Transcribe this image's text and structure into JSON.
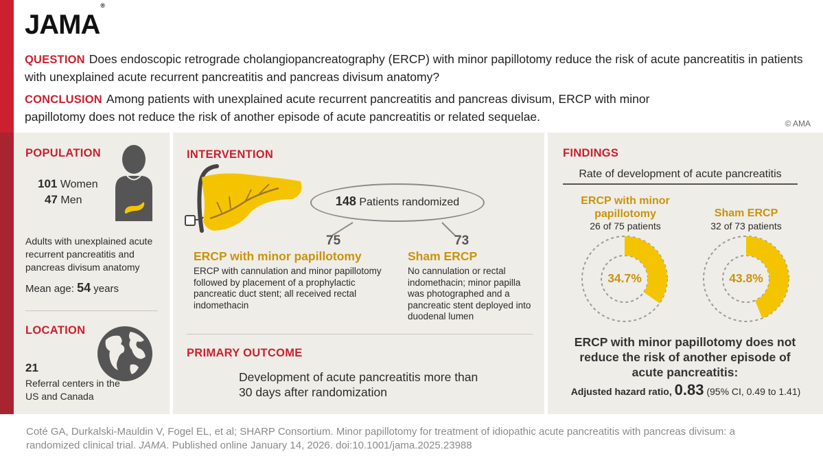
{
  "header": {
    "logo": "JAMA",
    "logo_mark": "®",
    "question_label": "QUESTION",
    "question_text": "Does endoscopic retrograde cholangiopancreatography (ERCP) with minor papillotomy reduce the risk of acute pancreatitis in patients with unexplained acute recurrent pancreatitis and pancreas divisum anatomy?",
    "conclusion_label": "CONCLUSION",
    "conclusion_text": "Among patients with unexplained acute recurrent pancreatitis and pancreas divisum, ERCP with minor papillotomy does not reduce the risk of another episode of acute pancreatitis or related sequelae.",
    "copyright": "© AMA"
  },
  "population": {
    "title": "POPULATION",
    "women_count": "101",
    "women_label": "Women",
    "men_count": "47",
    "men_label": "Men",
    "description": "Adults with unexplained acute recurrent pancreatitis and pancreas divisum anatomy",
    "mean_age_label": "Mean age:",
    "mean_age_value": "54",
    "mean_age_unit": "years"
  },
  "location": {
    "title": "LOCATION",
    "count": "21",
    "description": "Referral centers in the US and Canada"
  },
  "intervention": {
    "title": "INTERVENTION",
    "randomized_count": "148",
    "randomized_label": "Patients randomized",
    "arm1": {
      "n": "75",
      "name": "ERCP with minor papillotomy",
      "description": "ERCP with cannulation and minor papillotomy followed by placement of a prophylactic pancreatic duct stent; all received rectal indomethacin"
    },
    "arm2": {
      "n": "73",
      "name": "Sham ERCP",
      "description": "No cannulation or rectal indomethacin; minor papilla was photographed and a pancreatic stent deployed into duodenal lumen"
    }
  },
  "primary_outcome": {
    "title": "PRIMARY OUTCOME",
    "text": "Development of acute pancreatitis more than 30 days after randomization"
  },
  "findings": {
    "title": "FINDINGS",
    "subtitle": "Rate of development of acute pancreatitis",
    "group1": {
      "name": "ERCP with minor papillotomy",
      "detail": "26 of 75 patients",
      "pct_label": "34.7%",
      "fraction": 0.347
    },
    "group2": {
      "name": "Sham ERCP",
      "detail": "32 of 73 patients",
      "pct_label": "43.8%",
      "fraction": 0.438
    },
    "summary": "ERCP with minor papillotomy does not reduce the risk of another episode of acute pancreatitis:",
    "hr_label": "Adjusted hazard ratio,",
    "hr_value": "0.83",
    "hr_ci": "(95% CI, 0.49 to 1.41)"
  },
  "footer": {
    "citation_part1": "Coté GA, Durkalski-Mauldin V, Fogel EL, et al; SHARP Consortium. Minor papillotomy for treatment of idiopathic acute pancreatitis with pancreas divisum: a randomized clinical trial.",
    "journal": "JAMA",
    "citation_part2": ". Published online January 14, 2026. doi:10.1001/jama.2025.23988"
  },
  "colors": {
    "red": "#cc1f2f",
    "gold": "#f5c400",
    "gold_text": "#c9930e",
    "panel": "#efede7"
  },
  "icons": [
    "person-icon",
    "pancreas-icon",
    "globe-icon",
    "endoscope-icon"
  ]
}
